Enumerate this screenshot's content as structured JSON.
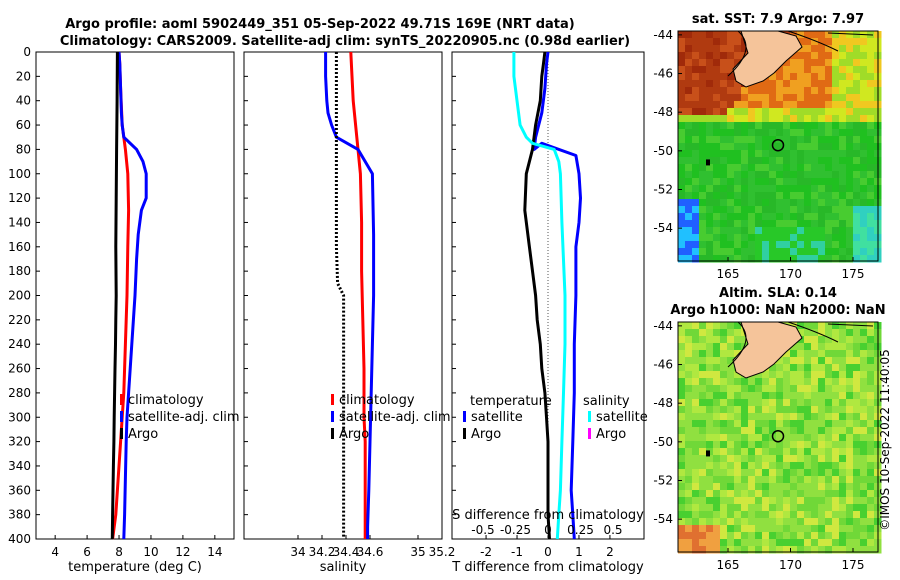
{
  "header": {
    "title_line1": "Argo profile: aoml 5902449_351 05-Sep-2022 49.71S 169E (NRT data)",
    "title_line2": "Climatology: CARS2009. Satellite-adj clim: synTS_20220905.nc (0.98d earlier)"
  },
  "watermark": "©IMOS 10-Sep-2022 11:40:05",
  "chart_data": [
    {
      "id": "temperature",
      "type": "line",
      "xlabel": "temperature (deg C)",
      "ylabel": "depth",
      "xlim": [
        2.8,
        15.2
      ],
      "ylim": [
        400,
        0
      ],
      "xticks": [
        4,
        6,
        8,
        10,
        12,
        14
      ],
      "xtick_labels": [
        "4",
        "6",
        "8",
        "10",
        "12",
        "14"
      ],
      "yticks": [
        0,
        20,
        40,
        60,
        80,
        100,
        120,
        140,
        160,
        180,
        200,
        220,
        240,
        260,
        280,
        300,
        320,
        340,
        360,
        380,
        400
      ],
      "ytick_labels": [
        "0",
        "20",
        "40",
        "60",
        "80",
        "100",
        "120",
        "140",
        "160",
        "180",
        "200",
        "220",
        "240",
        "260",
        "280",
        "300",
        "320",
        "340",
        "360",
        "380",
        "400"
      ],
      "legend": [
        "climatology",
        "satellite-adj. clim",
        "Argo"
      ],
      "legend_colors": [
        "#ff0000",
        "#0000ff",
        "#000000"
      ],
      "series": [
        {
          "name": "climatology",
          "color": "#ff0000",
          "x": [
            8.0,
            8.05,
            8.1,
            8.2,
            8.4,
            8.55,
            8.6,
            8.55,
            8.5,
            8.45,
            8.4,
            8.35,
            8.3,
            8.2,
            8.1,
            8.0,
            7.9,
            7.8,
            7.7,
            7.6
          ],
          "depth": [
            0,
            10,
            30,
            60,
            80,
            100,
            130,
            160,
            200,
            220,
            240,
            260,
            280,
            300,
            320,
            340,
            360,
            380,
            390,
            400
          ]
        },
        {
          "name": "satellite-adj. clim",
          "color": "#0000ff",
          "x": [
            8.0,
            8.05,
            8.1,
            8.15,
            8.2,
            8.25,
            8.3,
            9.1,
            9.5,
            9.7,
            9.7,
            9.4,
            9.2,
            9.1,
            9.0,
            8.9,
            8.8,
            8.7,
            8.6,
            8.5,
            8.45,
            8.4,
            8.35,
            8.3
          ],
          "depth": [
            0,
            10,
            30,
            50,
            60,
            65,
            70,
            80,
            90,
            100,
            120,
            130,
            150,
            170,
            200,
            220,
            240,
            260,
            280,
            300,
            320,
            350,
            380,
            400
          ]
        },
        {
          "name": "Argo",
          "color": "#000000",
          "x": [
            7.9,
            7.88,
            7.85,
            7.82,
            7.8,
            7.82,
            7.8,
            7.78,
            7.75,
            7.72,
            7.7,
            7.68,
            7.65,
            7.62,
            7.6,
            7.58
          ],
          "depth": [
            0,
            40,
            80,
            120,
            160,
            200,
            220,
            240,
            260,
            280,
            300,
            320,
            340,
            360,
            380,
            400
          ]
        }
      ]
    },
    {
      "id": "salinity",
      "type": "line",
      "xlabel": "salinity",
      "ylabel": "depth",
      "xlim": [
        33.55,
        35.2
      ],
      "ylim": [
        400,
        0
      ],
      "xticks": [
        34,
        34.2,
        34.4,
        34.6,
        35,
        35.2
      ],
      "xtick_labels": [
        "34",
        "34.2",
        "34.4",
        "34.6",
        "35",
        "35.2"
      ],
      "legend": [
        "climatology",
        "satellite-adj. clim",
        "Argo"
      ],
      "legend_colors": [
        "#ff0000",
        "#0000ff",
        "#000000"
      ],
      "series": [
        {
          "name": "climatology",
          "color": "#ff0000",
          "x": [
            34.44,
            34.45,
            34.46,
            34.48,
            34.5,
            34.52,
            34.53,
            34.53,
            34.54,
            34.55,
            34.55,
            34.56,
            34.56,
            34.56,
            34.56
          ],
          "depth": [
            0,
            20,
            40,
            60,
            80,
            100,
            140,
            180,
            220,
            260,
            300,
            320,
            340,
            380,
            400
          ]
        },
        {
          "name": "satellite-adj. clim",
          "color": "#0000ff",
          "x": [
            34.23,
            34.23,
            34.24,
            34.25,
            34.28,
            34.32,
            34.5,
            34.62,
            34.63,
            34.63,
            34.62,
            34.61,
            34.6,
            34.59,
            34.58,
            34.58
          ],
          "depth": [
            0,
            20,
            40,
            50,
            60,
            70,
            80,
            100,
            150,
            200,
            240,
            280,
            320,
            360,
            390,
            400
          ]
        },
        {
          "name": "Argo",
          "color": "#000000",
          "x": [
            34.32,
            34.32,
            34.32,
            34.32,
            34.32,
            34.33,
            34.38,
            34.38,
            34.38,
            34.38,
            34.38,
            34.38
          ],
          "depth": [
            0,
            40,
            80,
            120,
            160,
            190,
            200,
            210,
            260,
            320,
            360,
            400
          ]
        }
      ]
    },
    {
      "id": "difference",
      "type": "line",
      "xlabel": "T difference from climatology",
      "xlabel_top": "S difference from climatology",
      "ylabel": "depth",
      "xlim": [
        -3.1,
        3.1
      ],
      "ylim": [
        400,
        0
      ],
      "xticks": [
        -2,
        -1,
        0,
        1,
        2
      ],
      "xtick_labels": [
        "-2",
        "-1",
        "0",
        "1",
        "2"
      ],
      "s_ticks": [
        -0.5,
        -0.25,
        0,
        0.25,
        0.5
      ],
      "s_tick_labels": [
        "-0.5",
        "-0.25",
        "0",
        "0.25",
        "0.5"
      ],
      "legend_titles": [
        "temperature",
        "salinity"
      ],
      "legend_t": [
        "satellite",
        "Argo"
      ],
      "legend_t_colors": [
        "#0000ff",
        "#000000"
      ],
      "legend_s": [
        "satellite",
        "Argo"
      ],
      "legend_s_colors": [
        "#00ffff",
        "#ff00ff"
      ],
      "series": [
        {
          "name": "T satellite",
          "color": "#0000ff",
          "x": [
            0,
            -0.05,
            -0.1,
            -0.2,
            -0.3,
            -0.4,
            -0.45,
            -0.2,
            0.9,
            1.0,
            1.05,
            1.0,
            0.9,
            0.9,
            0.85,
            0.85,
            0.8,
            0.75,
            0.8,
            0.85
          ],
          "depth": [
            0,
            10,
            30,
            50,
            60,
            70,
            80,
            75,
            85,
            100,
            120,
            140,
            160,
            200,
            240,
            280,
            320,
            360,
            380,
            400
          ]
        },
        {
          "name": "T Argo",
          "color": "#000000",
          "x": [
            -0.1,
            -0.15,
            -0.2,
            -0.25,
            -0.4,
            -0.5,
            -0.7,
            -0.75,
            -0.6,
            -0.5,
            -0.4,
            -0.35,
            -0.25,
            -0.2,
            -0.1,
            -0.05,
            0.0,
            0.0,
            0.0,
            0.05
          ],
          "depth": [
            0,
            10,
            20,
            40,
            60,
            80,
            100,
            130,
            160,
            180,
            200,
            220,
            240,
            260,
            280,
            300,
            320,
            360,
            380,
            400
          ]
        },
        {
          "name": "S satellite",
          "color": "#00ffff",
          "x": [
            -1.1,
            -1.1,
            -1.0,
            -0.9,
            -0.7,
            -0.5,
            0.2,
            0.35,
            0.4,
            0.45,
            0.55,
            0.55,
            0.5,
            0.45,
            0.4,
            0.35,
            0.3
          ],
          "depth": [
            0,
            20,
            40,
            60,
            70,
            75,
            80,
            90,
            100,
            140,
            200,
            240,
            280,
            320,
            360,
            380,
            400
          ]
        }
      ]
    },
    {
      "id": "sst-map",
      "type": "heatmap",
      "title": "sat. SST: 7.9 Argo: 7.97",
      "xticks": [
        165,
        170,
        175
      ],
      "xtick_labels": [
        "165",
        "170",
        "175"
      ],
      "yticks": [
        -44,
        -46,
        -48,
        -50,
        -52,
        -54
      ],
      "ytick_labels": [
        "-44",
        "-46",
        "-48",
        "-50",
        "-52",
        "-54"
      ],
      "xlim": [
        161,
        177
      ],
      "ylim": [
        -55.7,
        -43.8
      ],
      "marker": {
        "lon": 169,
        "lat": -49.71
      }
    },
    {
      "id": "sla-map",
      "type": "heatmap",
      "title_line1": "Altim. SLA: 0.14",
      "title_line2": "Argo h1000: NaN h2000: NaN",
      "xticks": [
        165,
        170,
        175
      ],
      "xtick_labels": [
        "165",
        "170",
        "175"
      ],
      "yticks": [
        -44,
        -46,
        -48,
        -50,
        -52,
        -54
      ],
      "ytick_labels": [
        "-44",
        "-46",
        "-48",
        "-50",
        "-52",
        "-54"
      ],
      "xlim": [
        161,
        177
      ],
      "ylim": [
        -55.7,
        -43.8
      ],
      "marker": {
        "lon": 169,
        "lat": -49.71
      }
    }
  ]
}
